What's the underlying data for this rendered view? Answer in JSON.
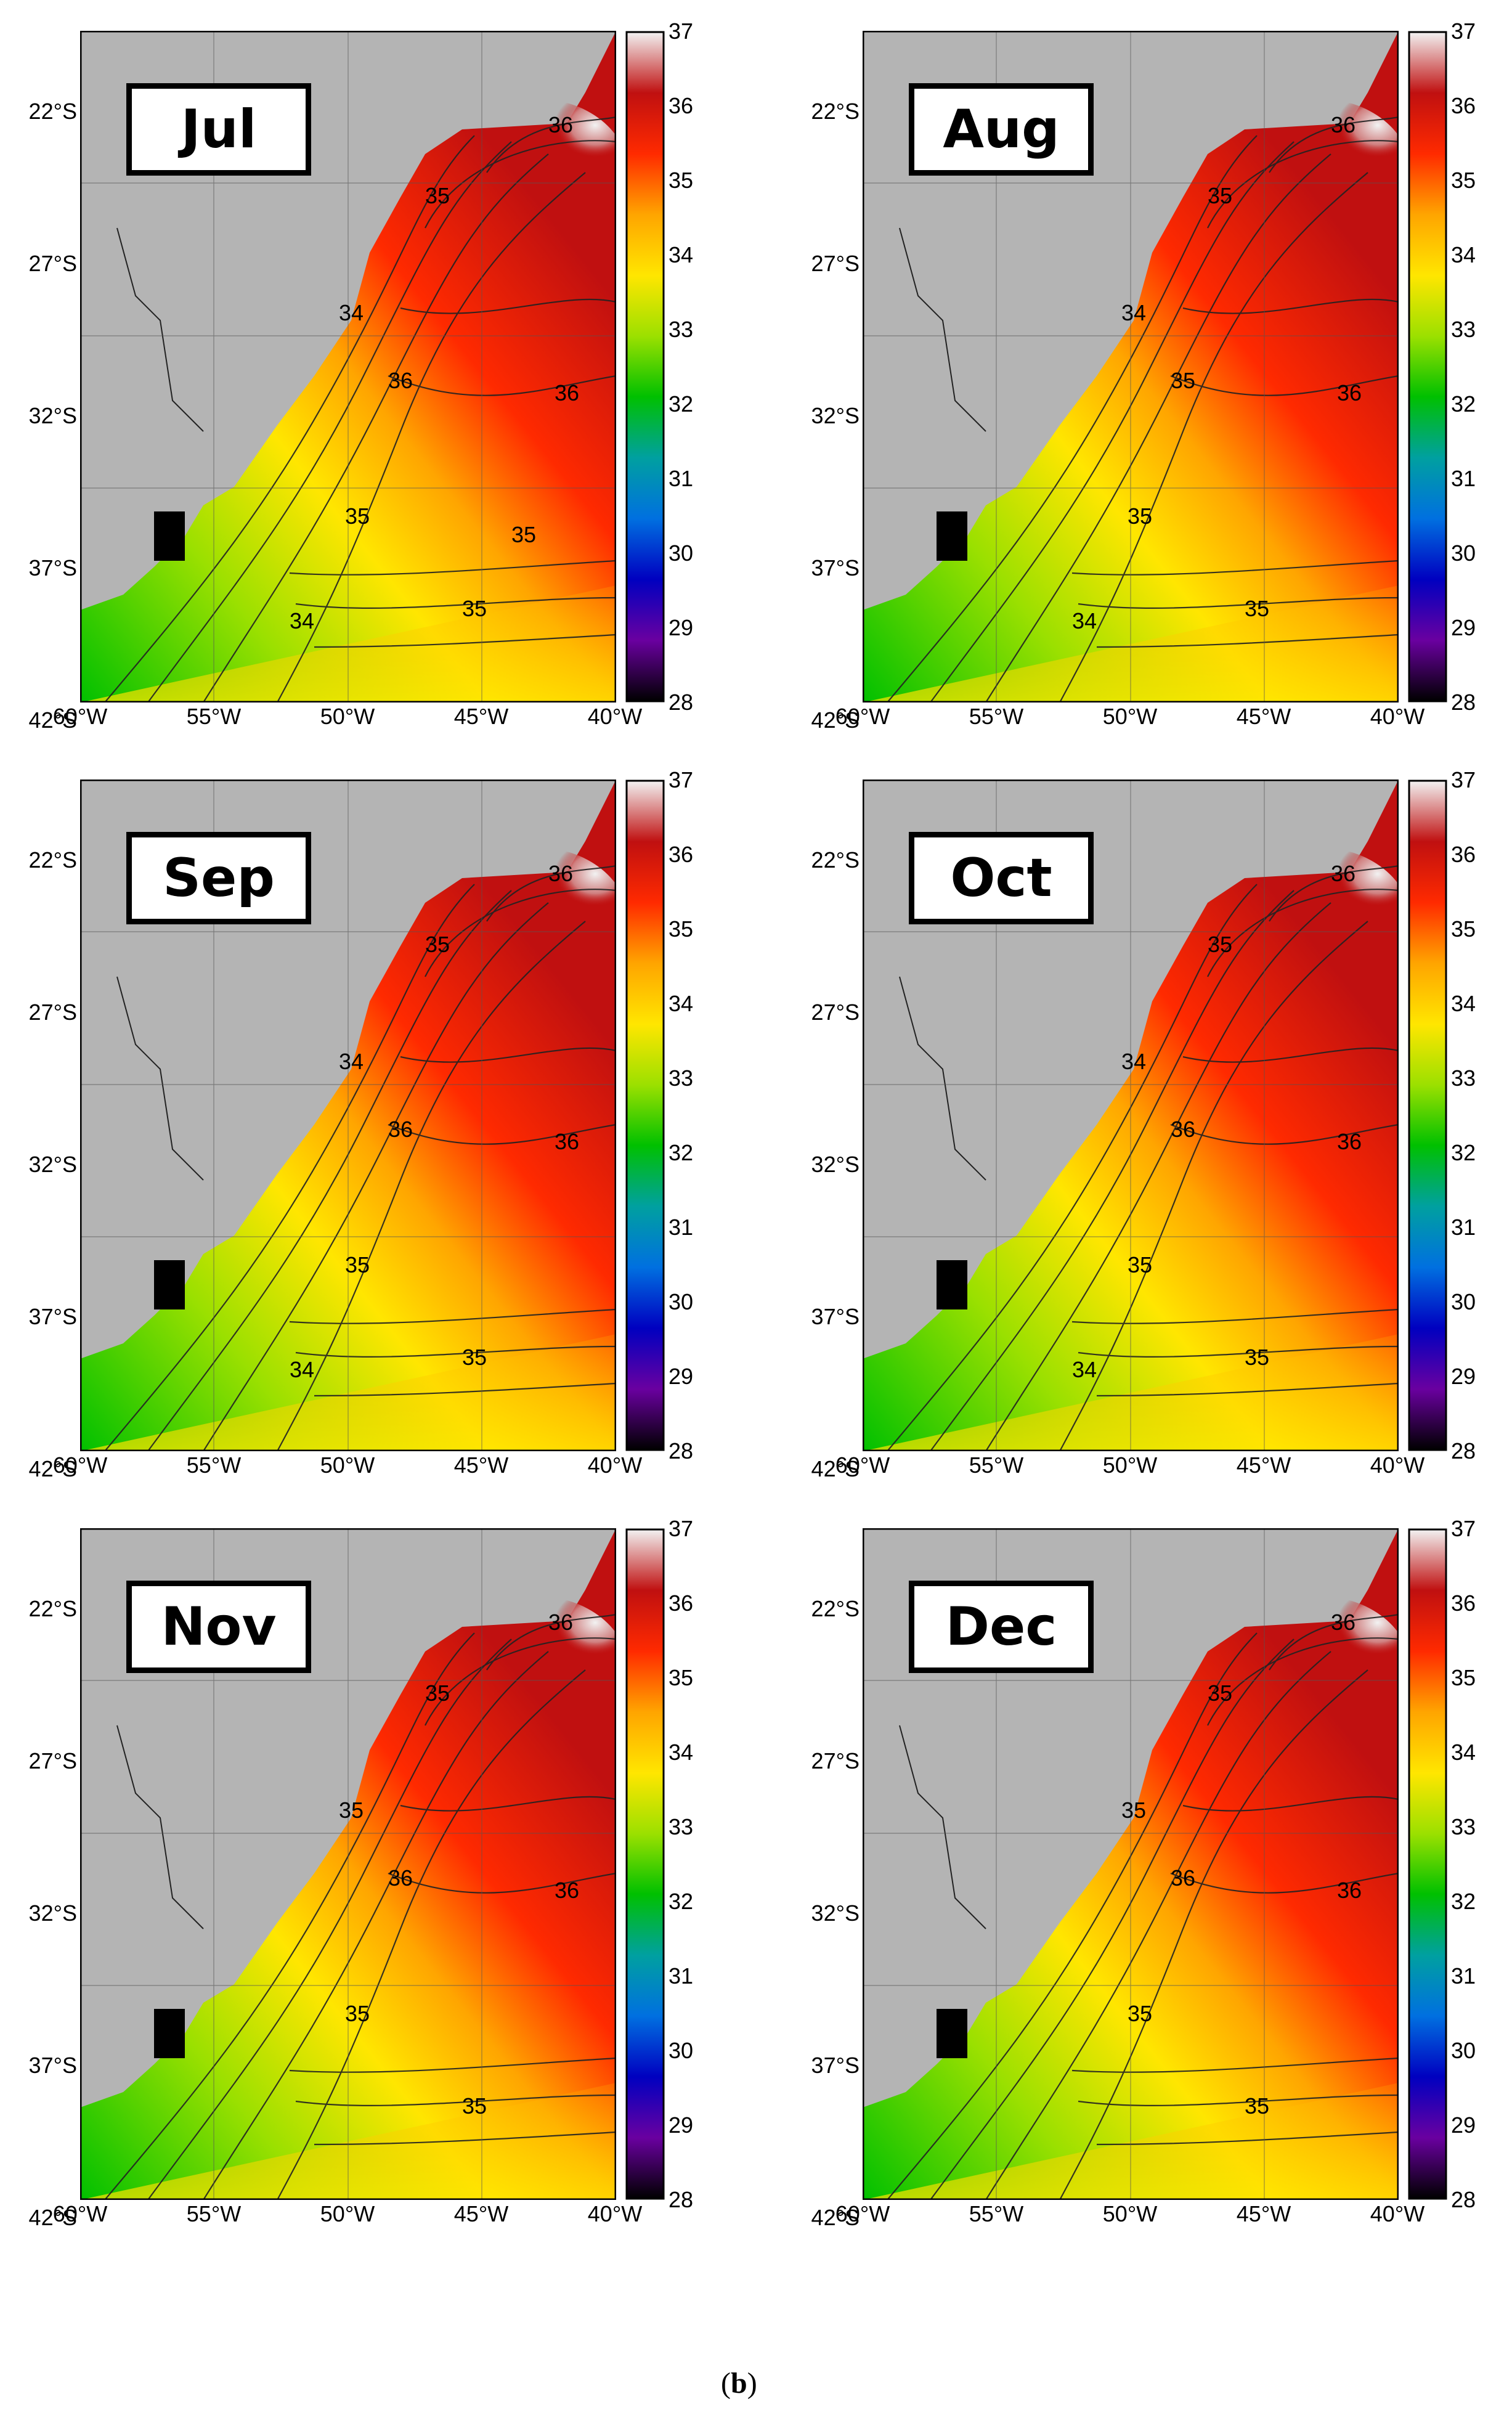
{
  "figure_label_open": "(",
  "figure_label_letter": "b",
  "figure_label_close": ")",
  "y_axis_labels": [
    "22°S",
    "27°S",
    "32°S",
    "37°S",
    "42°S"
  ],
  "x_axis_labels": [
    "60°W",
    "55°W",
    "50°W",
    "45°W",
    "40°W"
  ],
  "colorbar_ticks": [
    "37",
    "36",
    "35",
    "34",
    "33",
    "32",
    "31",
    "30",
    "29",
    "28"
  ],
  "colormap": [
    "#f2f2f2",
    "#c01010",
    "#ff2a00",
    "#ffa500",
    "#ffe600",
    "#9be000",
    "#00c000",
    "#00a0a0",
    "#0070e0",
    "#0000c0",
    "#6a00a0",
    "#000000"
  ],
  "land_color": "#b4b4b4",
  "panels": [
    {
      "month": "Jul",
      "contour_labels": [
        "36",
        "35",
        "34",
        "36",
        "36",
        "35",
        "35",
        "34",
        "35"
      ]
    },
    {
      "month": "Aug",
      "contour_labels": [
        "36",
        "35",
        "34",
        "35",
        "36",
        "35",
        "35",
        "34"
      ]
    },
    {
      "month": "Sep",
      "contour_labels": [
        "36",
        "35",
        "34",
        "36",
        "36",
        "35",
        "35",
        "34"
      ]
    },
    {
      "month": "Oct",
      "contour_labels": [
        "36",
        "35",
        "34",
        "36",
        "36",
        "35",
        "35",
        "34"
      ]
    },
    {
      "month": "Nov",
      "contour_labels": [
        "36",
        "35",
        "35",
        "36",
        "36",
        "35",
        "35"
      ]
    },
    {
      "month": "Dec",
      "contour_labels": [
        "36",
        "35",
        "35",
        "36",
        "36",
        "35",
        "35"
      ]
    }
  ]
}
